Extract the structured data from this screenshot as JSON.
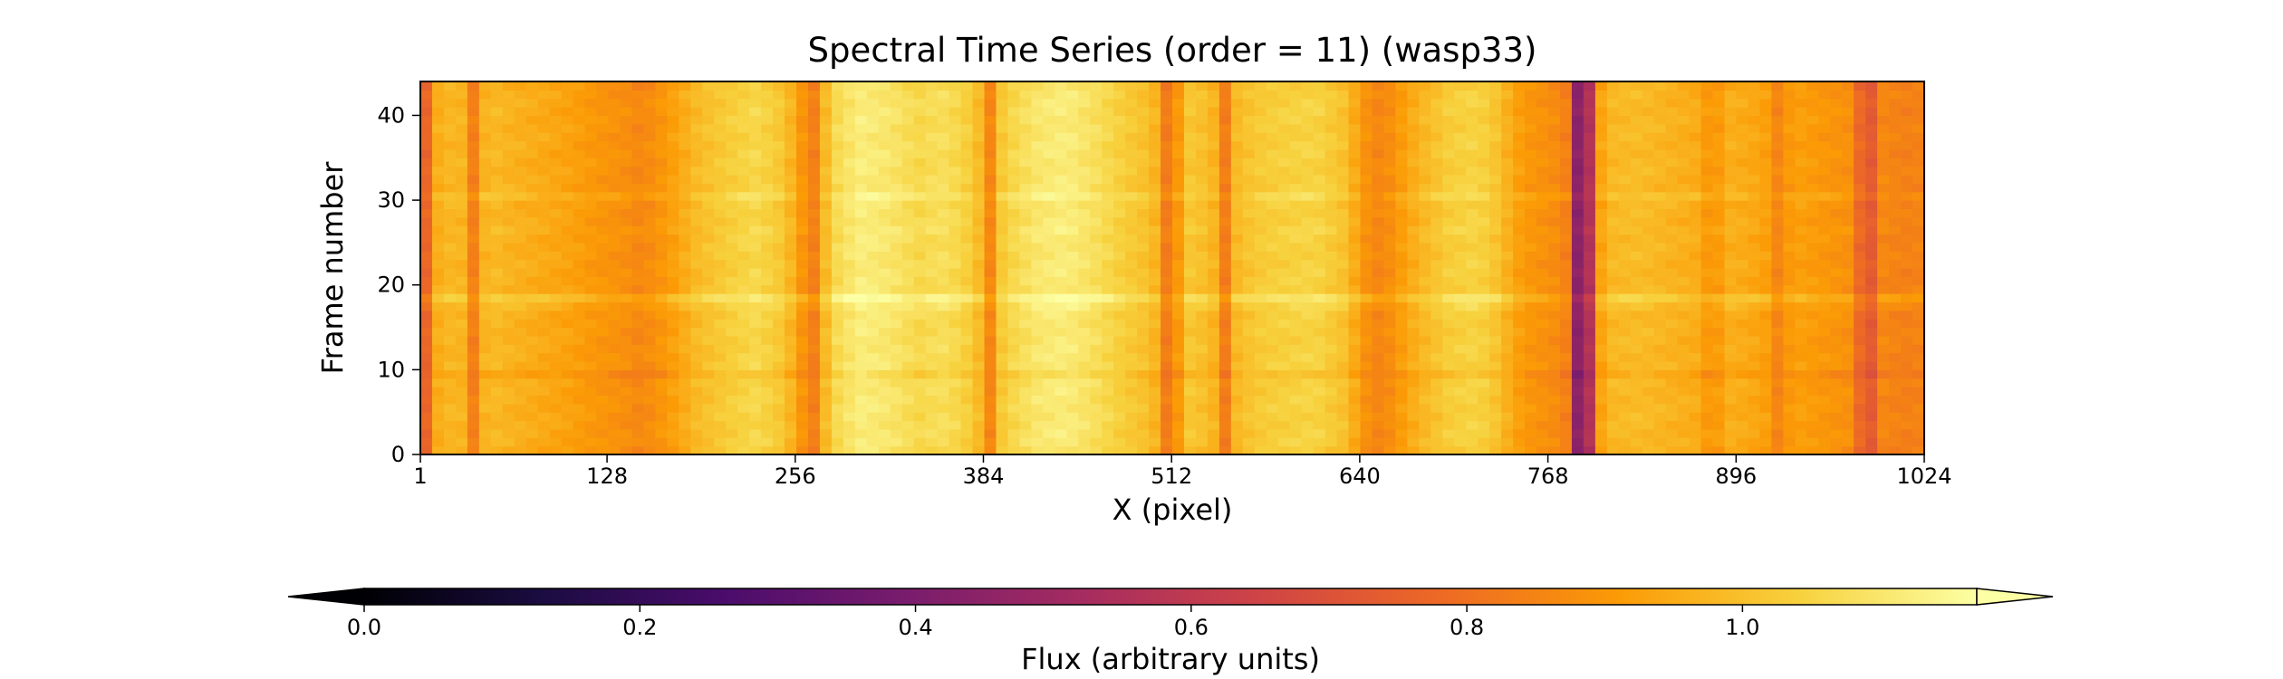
{
  "chart_data": {
    "type": "heatmap",
    "title": "Spectral Time Series (order = 11) (wasp33)",
    "xlabel": "X (pixel)",
    "ylabel": "Frame number",
    "xlim": [
      1,
      1024
    ],
    "ylim": [
      0,
      44
    ],
    "x_ticks": [
      1,
      128,
      256,
      384,
      512,
      640,
      768,
      896,
      1024
    ],
    "y_ticks": [
      0,
      10,
      20,
      30,
      40
    ],
    "n_frames": 44,
    "column_profile": {
      "x": [
        1,
        4,
        8,
        15,
        25,
        34,
        38,
        42,
        48,
        60,
        80,
        100,
        120,
        140,
        150,
        160,
        175,
        190,
        210,
        230,
        245,
        255,
        262,
        266,
        270,
        276,
        285,
        300,
        320,
        340,
        355,
        370,
        380,
        388,
        392,
        396,
        405,
        420,
        440,
        460,
        480,
        495,
        505,
        510,
        514,
        518,
        525,
        540,
        548,
        553,
        560,
        575,
        590,
        610,
        630,
        645,
        655,
        665,
        680,
        700,
        720,
        735,
        745,
        755,
        768,
        780,
        785,
        790,
        795,
        800,
        810,
        830,
        850,
        870,
        880,
        890,
        900,
        915,
        925,
        930,
        940,
        955,
        975,
        985,
        995,
        1010,
        1024
      ],
      "values": [
        0.6,
        0.72,
        0.92,
        0.97,
        0.98,
        0.96,
        0.8,
        0.95,
        0.99,
        0.97,
        0.95,
        0.93,
        0.9,
        0.88,
        0.86,
        0.88,
        0.93,
        0.99,
        1.03,
        1.06,
        1.02,
        0.96,
        0.88,
        0.8,
        0.86,
        0.98,
        1.07,
        1.12,
        1.1,
        1.06,
        1.08,
        1.05,
        1.0,
        0.85,
        0.92,
        1.02,
        1.06,
        1.1,
        1.12,
        1.08,
        1.03,
        1.0,
        0.95,
        0.78,
        0.83,
        0.95,
        1.02,
        0.98,
        0.82,
        0.97,
        1.0,
        1.03,
        1.04,
        1.05,
        1.0,
        0.88,
        0.85,
        0.9,
        0.97,
        1.03,
        1.05,
        1.0,
        0.93,
        0.9,
        0.88,
        0.86,
        0.5,
        0.42,
        0.45,
        0.9,
        0.98,
        0.99,
        0.97,
        0.95,
        0.88,
        0.96,
        0.95,
        0.93,
        0.85,
        0.9,
        0.92,
        0.9,
        0.88,
        0.68,
        0.86,
        0.84,
        0.85
      ]
    },
    "row_profile": {
      "frames": [
        0,
        5,
        9,
        17,
        18,
        19,
        26,
        30,
        38,
        43
      ],
      "offsets": [
        -0.01,
        0.0,
        -0.03,
        0.02,
        0.06,
        0.0,
        0.01,
        0.03,
        0.0,
        -0.01
      ]
    },
    "colorbar": {
      "label": "Flux (arbitrary units)",
      "colormap": "inferno",
      "range": [
        0.0,
        1.17
      ],
      "ticks": [
        0.0,
        0.2,
        0.4,
        0.6,
        0.8,
        1.0
      ],
      "tick_labels": [
        "0.0",
        "0.2",
        "0.4",
        "0.6",
        "0.8",
        "1.0"
      ],
      "extend": "both",
      "colors": [
        "#000004",
        "#1b0c41",
        "#4a0c6b",
        "#781c6d",
        "#a52c60",
        "#cf4446",
        "#ed6925",
        "#fb9b06",
        "#f7d13d",
        "#fcffa4"
      ]
    }
  }
}
